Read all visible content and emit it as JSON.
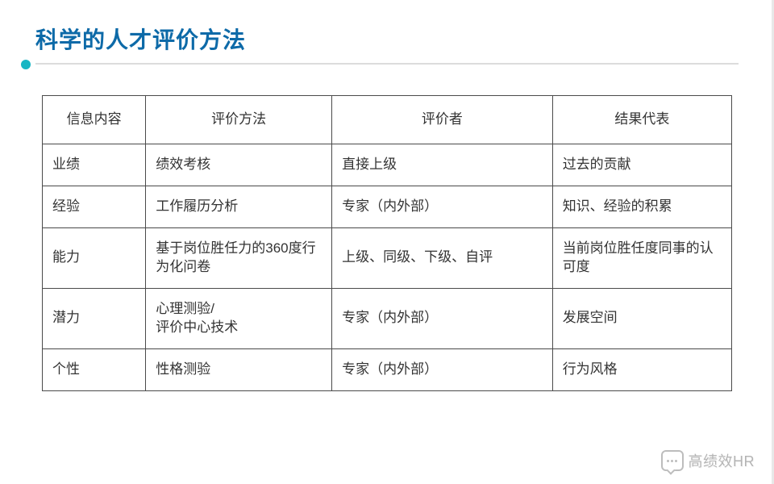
{
  "title": "科学的人才评价方法",
  "accent_color": "#0d6aa8",
  "dot_color": "#18b6c4",
  "table": {
    "columns": [
      "信息内容",
      "评价方法",
      "评价者",
      "结果代表"
    ],
    "rows": [
      [
        "业绩",
        "绩效考核",
        "直接上级",
        "过去的贡献"
      ],
      [
        "经验",
        "工作履历分析",
        "专家（内外部）",
        "知识、经验的积累"
      ],
      [
        "能力",
        "基于岗位胜任力的360度行为化问卷",
        "上级、同级、下级、自评",
        "当前岗位胜任度同事的认可度"
      ],
      [
        "潜力",
        "心理测验/\n评价中心技术",
        "专家（内外部）",
        "发展空间"
      ],
      [
        "个性",
        "性格测验",
        "专家（内外部）",
        "行为风格"
      ]
    ]
  },
  "watermark": "高绩效HR"
}
